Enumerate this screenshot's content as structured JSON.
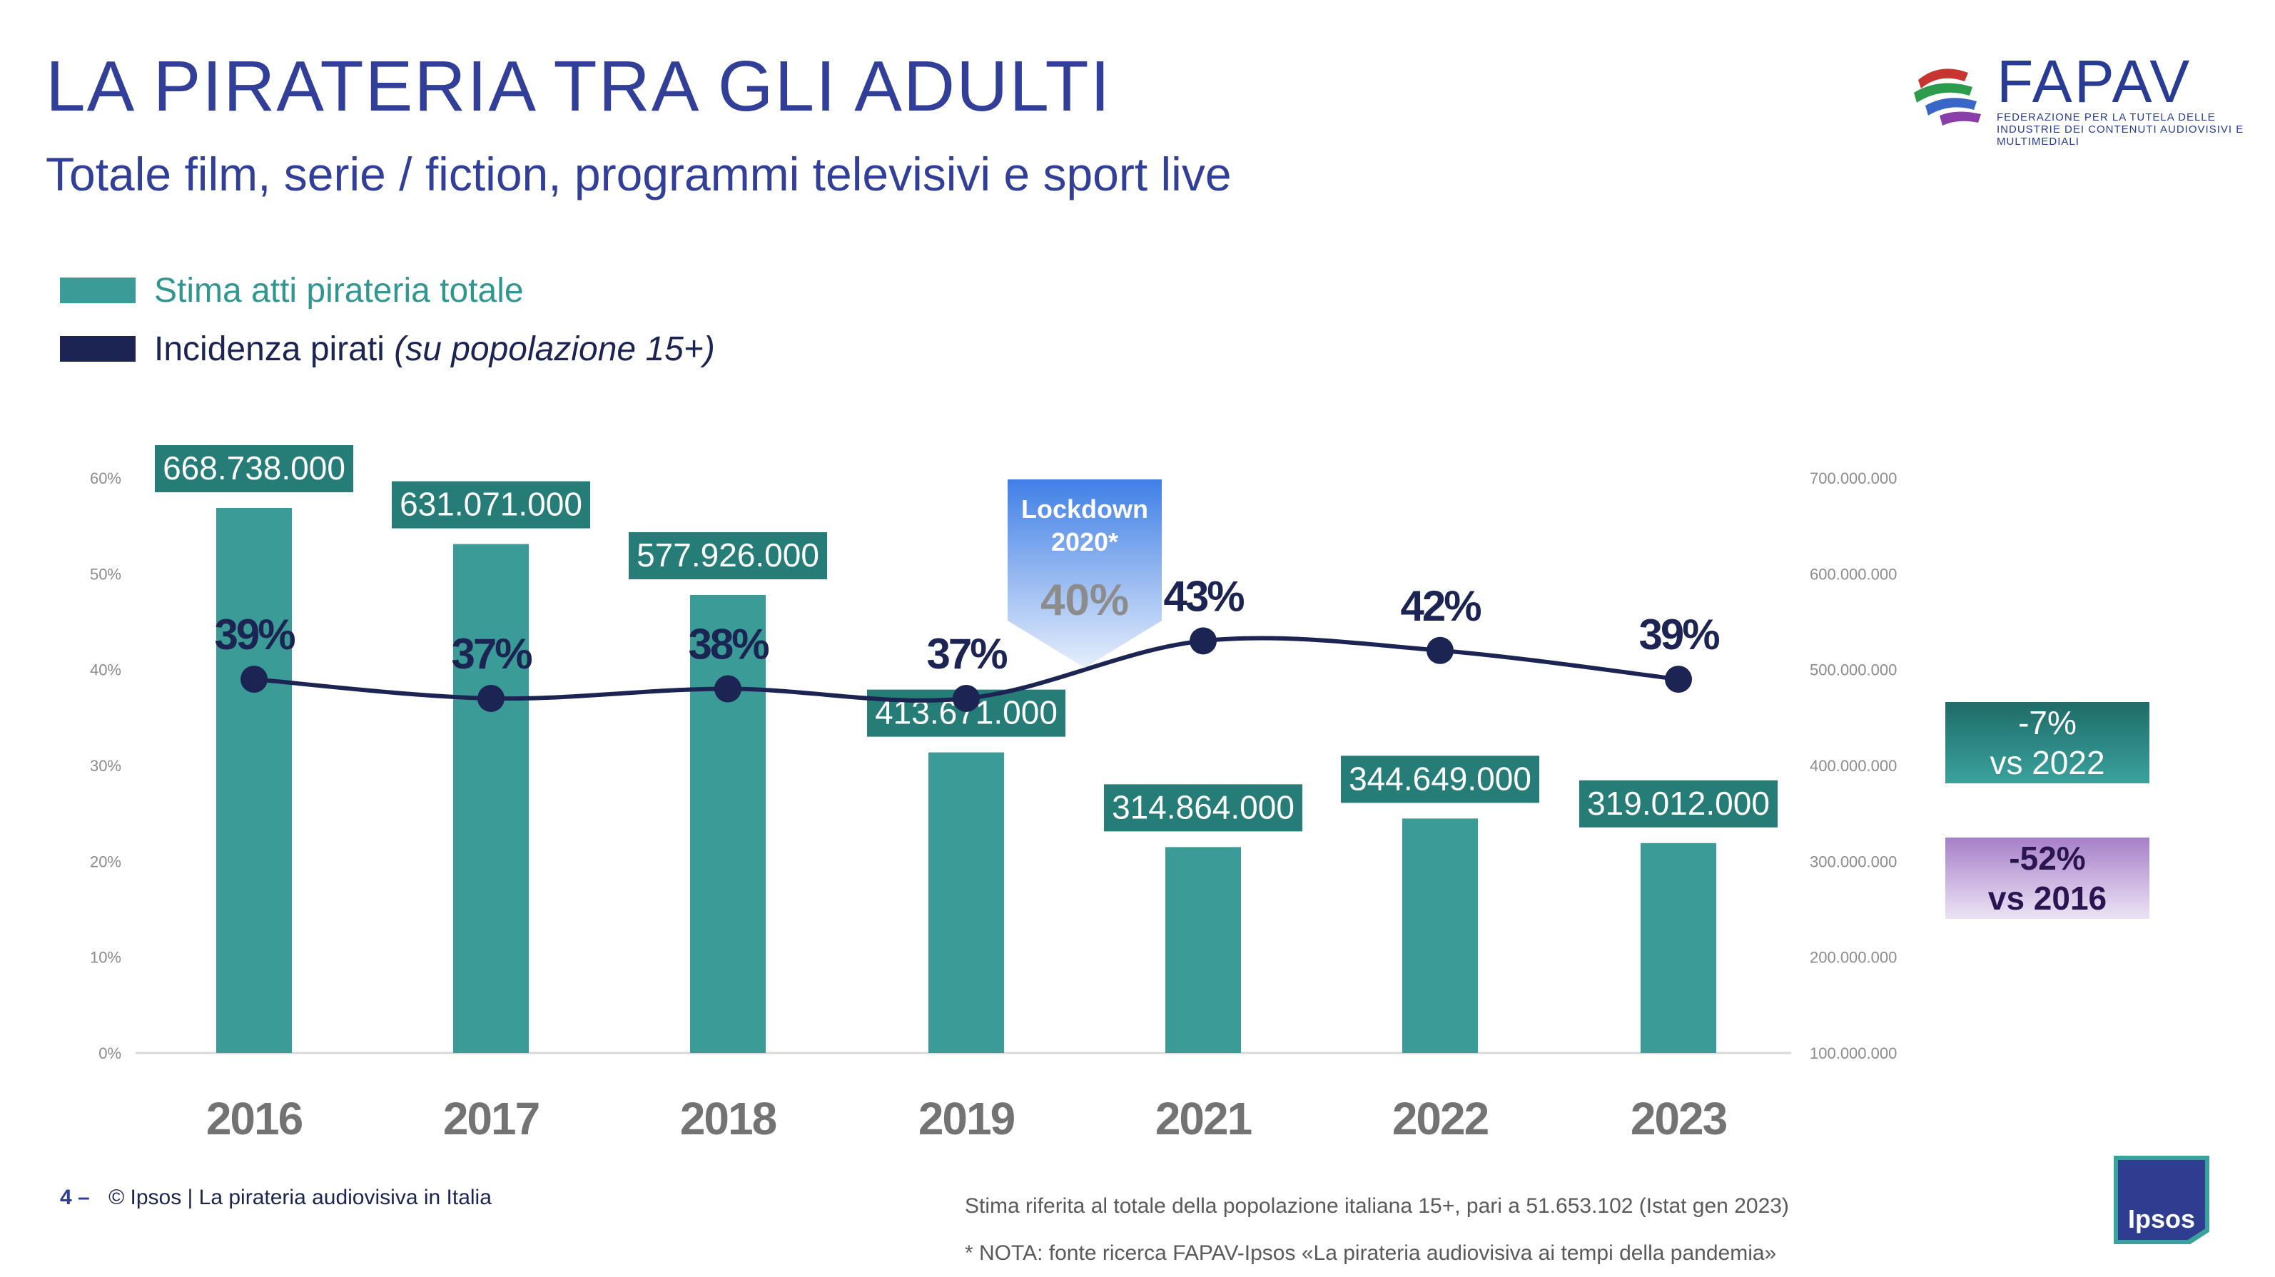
{
  "title": "LA PIRATERIA TRA GLI ADULTI",
  "subtitle": "Totale film, serie / fiction, programmi televisivi e sport live",
  "logo": {
    "name": "FAPAV",
    "tagline": "Federazione per la tutela delle industrie dei contenuti audiovisivi e multimediali"
  },
  "legend": {
    "bars": "Stima atti pirateria totale",
    "line": "Incidenza pirati",
    "line_note": "(su popolazione 15+)"
  },
  "colors": {
    "bars": "#3b9b97",
    "line": "#1c2453",
    "title": "#323f98",
    "lockdown": "#3f7fe6"
  },
  "chart_data": {
    "type": "bar",
    "categories": [
      "2016",
      "2017",
      "2018",
      "2019",
      "2021",
      "2022",
      "2023"
    ],
    "series": [
      {
        "name": "Stima atti pirateria totale",
        "axis": "right",
        "values": [
          668738000,
          631071000,
          577926000,
          413671000,
          314864000,
          344649000,
          319012000
        ],
        "labels": [
          "668.738.000",
          "631.071.000",
          "577.926.000",
          "413.671.000",
          "314.864.000",
          "344.649.000",
          "319.012.000"
        ]
      },
      {
        "name": "Incidenza pirati",
        "type": "line",
        "axis": "left",
        "values": [
          39,
          37,
          38,
          37,
          43,
          42,
          39
        ],
        "labels": [
          "39%",
          "37%",
          "38%",
          "37%",
          "43%",
          "42%",
          "39%"
        ]
      }
    ],
    "left_axis": {
      "range": [
        0,
        60
      ],
      "ticks": [
        "0%",
        "10%",
        "20%",
        "30%",
        "40%",
        "50%",
        "60%"
      ]
    },
    "right_axis": {
      "range": [
        100000000,
        700000000
      ],
      "ticks": [
        "100.000.000",
        "200.000.000",
        "300.000.000",
        "400.000.000",
        "500.000.000",
        "600.000.000",
        "700.000.000"
      ]
    },
    "annotation": {
      "title_lines": [
        "Lockdown",
        "2020*"
      ],
      "value": "40%",
      "between": [
        "2019",
        "2021"
      ]
    },
    "grid": false,
    "legend_position": "top-left"
  },
  "changes": [
    {
      "value": "-7%",
      "label": "vs 2022"
    },
    {
      "value": "-52%",
      "label": "vs 2016"
    }
  ],
  "footer": {
    "page": "4 –",
    "credit": "© Ipsos | La pirateria audiovisiva in Italia",
    "note1": "Stima riferita al totale della popolazione italiana 15+, pari a 51.653.102 (Istat gen 2023)",
    "note2": "* NOTA: fonte ricerca FAPAV-Ipsos «La pirateria audiovisiva ai tempi della pandemia»",
    "brand": "Ipsos"
  }
}
